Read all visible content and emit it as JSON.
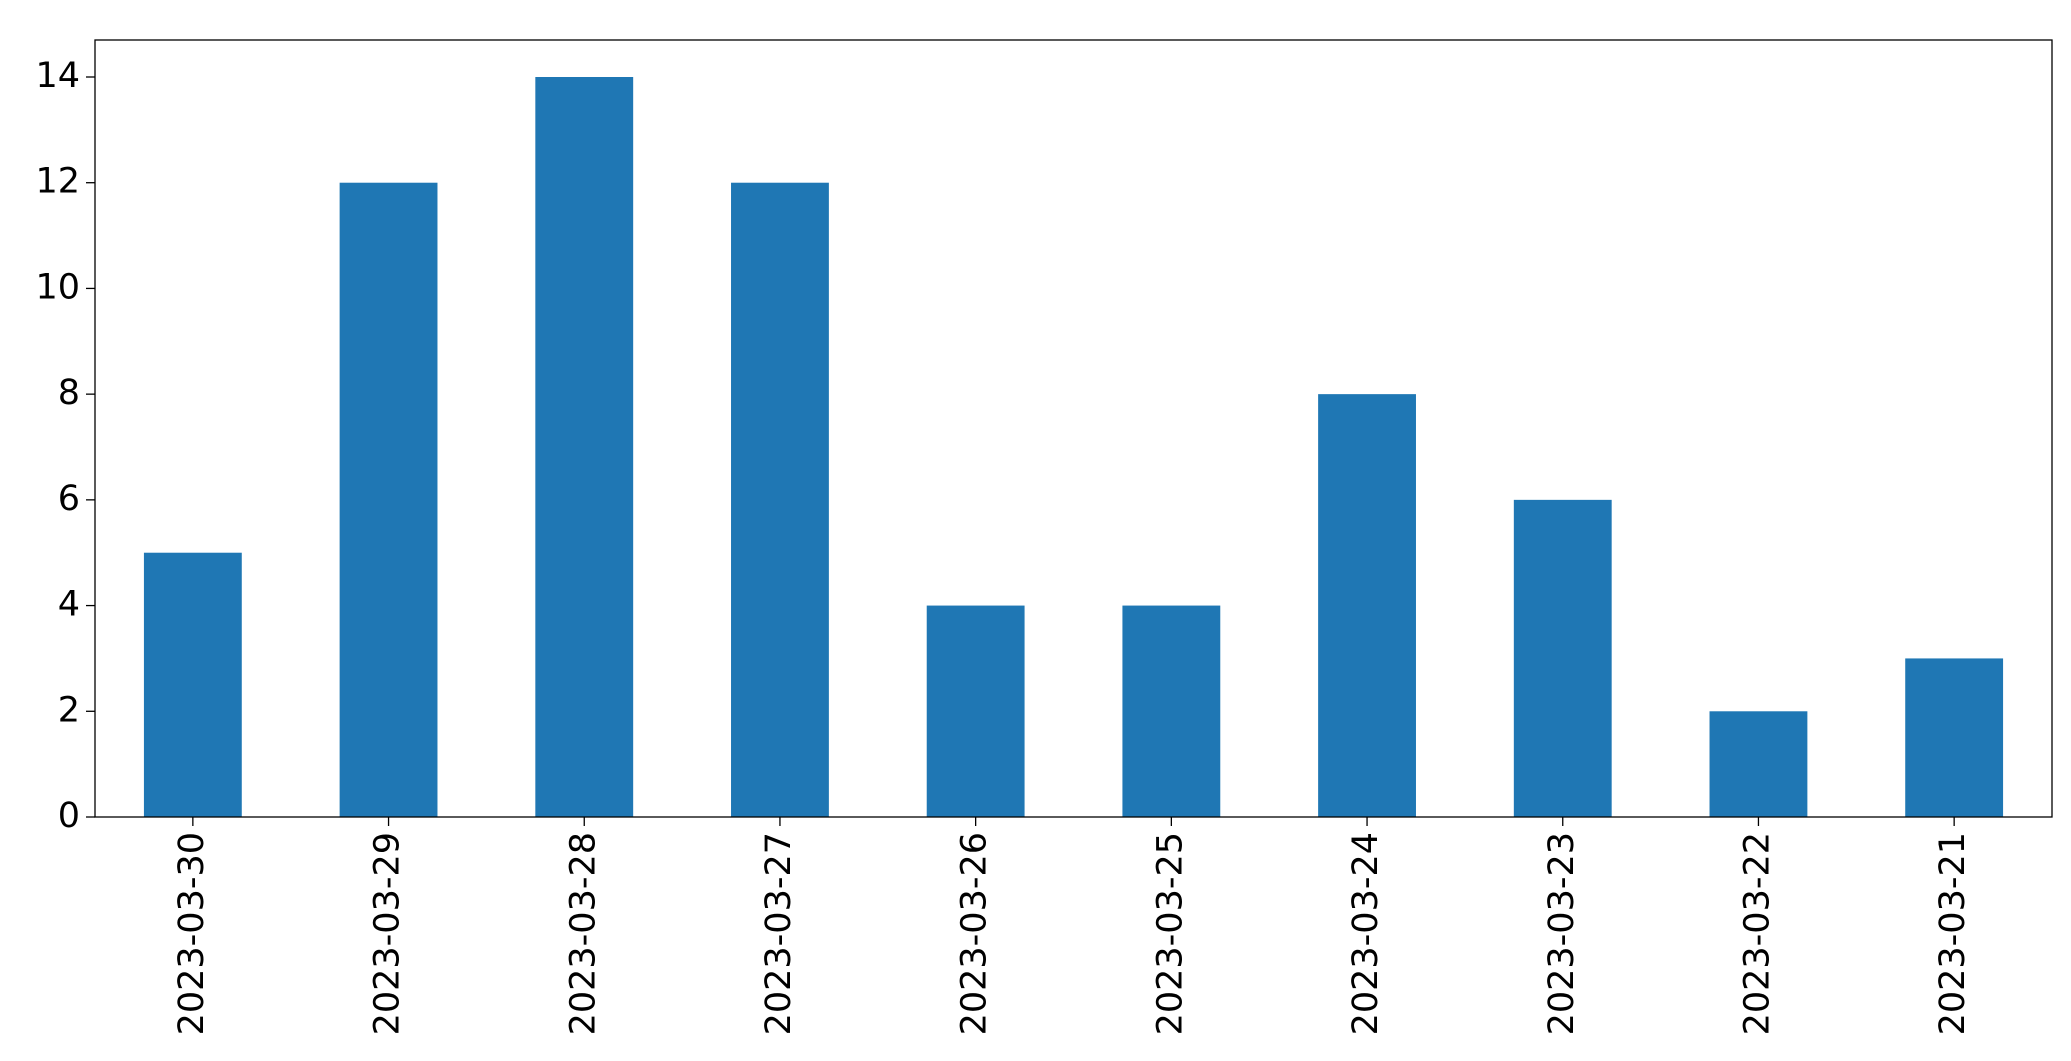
{
  "chart_data": {
    "type": "bar",
    "categories": [
      "2023-03-30",
      "2023-03-29",
      "2023-03-28",
      "2023-03-27",
      "2023-03-26",
      "2023-03-25",
      "2023-03-24",
      "2023-03-23",
      "2023-03-22",
      "2023-03-21"
    ],
    "values": [
      5,
      12,
      14,
      12,
      4,
      4,
      8,
      6,
      2,
      3
    ],
    "color": "#1f77b4",
    "ylim": [
      0,
      14.7
    ],
    "yticks": [
      0,
      2,
      4,
      6,
      8,
      10,
      12,
      14
    ],
    "grid": false
  }
}
